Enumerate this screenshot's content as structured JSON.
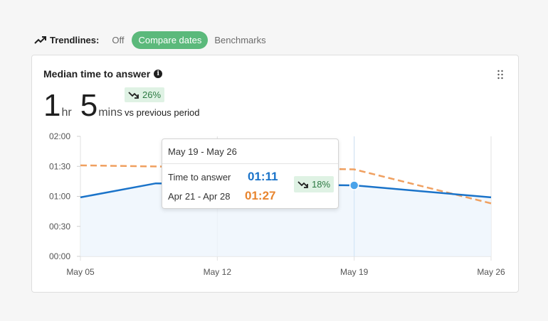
{
  "trendlines": {
    "label": "Trendlines:",
    "options": [
      "Off",
      "Compare dates",
      "Benchmarks"
    ],
    "selected": "Compare dates"
  },
  "card": {
    "title": "Median time to answer",
    "value_hours": "1",
    "unit_hours": "hr",
    "value_mins": "5",
    "unit_mins": "mins",
    "delta": "26%",
    "delta_caption": "vs previous period"
  },
  "tooltip": {
    "range": "May 19 - May 26",
    "current_label": "Time to answer",
    "current_value": "01:11",
    "previous_label": "Apr 21 - Apr 28",
    "previous_value": "01:27",
    "delta": "18%"
  },
  "colors": {
    "current": "#1a73c9",
    "previous": "#f0a060",
    "accent_green": "#5bb97b"
  },
  "chart_data": {
    "type": "line",
    "x": [
      "May 05",
      "May 12",
      "May 19",
      "May 26"
    ],
    "y_ticks": [
      "00:00",
      "00:30",
      "01:00",
      "01:30",
      "02:00"
    ],
    "ylim": [
      0,
      120
    ],
    "series": [
      {
        "name": "Time to answer",
        "style": "solid",
        "x": [
          0,
          0.55,
          2,
          3
        ],
        "y": [
          59,
          73,
          71,
          59
        ]
      },
      {
        "name": "Apr 21 - Apr 28",
        "style": "dashed",
        "x": [
          0,
          1,
          2,
          3
        ],
        "y": [
          91,
          89,
          87,
          53
        ]
      }
    ],
    "hover_index": 2,
    "grid": "vertical"
  }
}
